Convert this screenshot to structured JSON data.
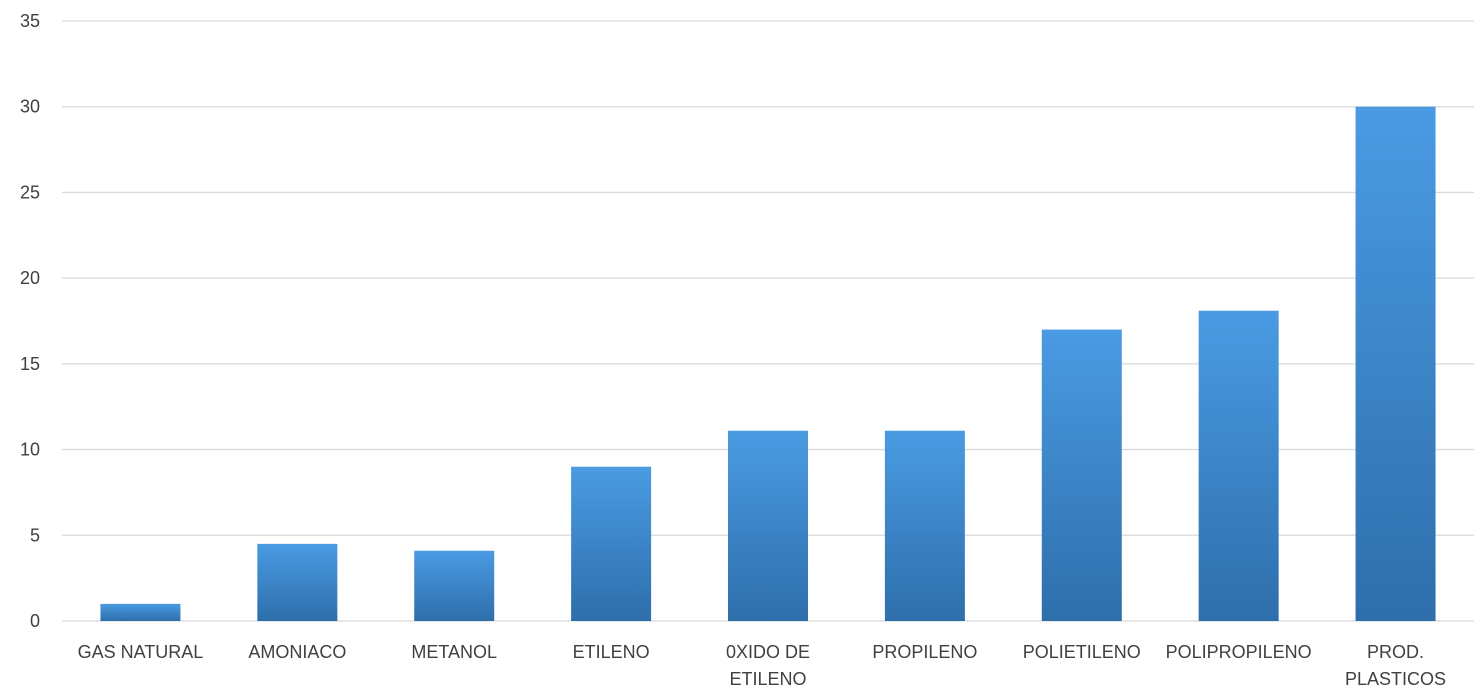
{
  "chart_data": {
    "type": "bar",
    "title": "",
    "xlabel": "",
    "ylabel": "",
    "categories": [
      [
        "GAS NATURAL"
      ],
      [
        "AMONIACO"
      ],
      [
        "METANOL"
      ],
      [
        "ETILENO"
      ],
      [
        "0XIDO DE",
        "ETILENO"
      ],
      [
        "PROPILENO"
      ],
      [
        "POLIETILENO"
      ],
      [
        "POLIPROPILENO"
      ],
      [
        "PROD.",
        "PLASTICOS"
      ]
    ],
    "values": [
      1,
      4.5,
      4.1,
      9,
      11.1,
      11.1,
      17,
      18.1,
      30
    ],
    "ylim": [
      0,
      35
    ],
    "yticks": [
      0,
      5,
      10,
      15,
      20,
      25,
      30,
      35
    ],
    "grid": true,
    "legend": "none",
    "colors": {
      "bar_top": "#4A9BE3",
      "bar_bottom": "#2E6EAB",
      "grid": "#D9D9D9",
      "text": "#404040"
    }
  }
}
